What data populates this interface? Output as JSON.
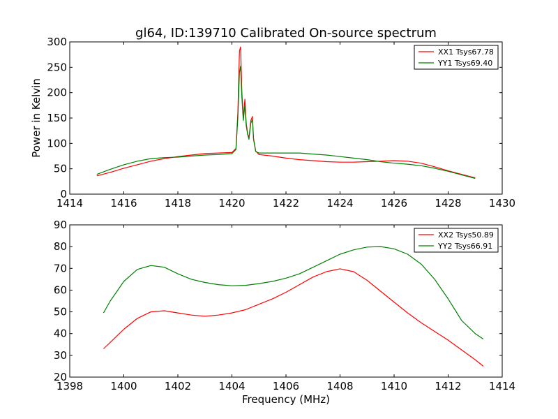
{
  "chart_data": [
    {
      "type": "line",
      "title": "gl64, ID:139710 Calibrated On-source spectrum",
      "xlabel": "",
      "ylabel": "Power in Kelvin",
      "xlim": [
        1414,
        1430
      ],
      "ylim": [
        0,
        300
      ],
      "xticks": [
        1414,
        1416,
        1418,
        1420,
        1422,
        1424,
        1426,
        1428,
        1430
      ],
      "yticks": [
        0,
        50,
        100,
        150,
        200,
        250,
        300
      ],
      "grid": false,
      "legend_position": "top-right",
      "series": [
        {
          "name": "XX1 Tsys67.78",
          "color": "#ff0000",
          "x": [
            1415.0,
            1415.5,
            1416.0,
            1416.5,
            1417.0,
            1417.5,
            1418.0,
            1418.5,
            1419.0,
            1419.5,
            1420.0,
            1420.15,
            1420.22,
            1420.28,
            1420.32,
            1420.37,
            1420.42,
            1420.48,
            1420.53,
            1420.58,
            1420.63,
            1420.7,
            1420.76,
            1420.8,
            1420.88,
            1421.0,
            1421.5,
            1422.0,
            1422.5,
            1423.0,
            1423.5,
            1424.0,
            1424.5,
            1425.0,
            1425.5,
            1426.0,
            1426.5,
            1427.0,
            1427.5,
            1428.0,
            1428.5,
            1429.0
          ],
          "y": [
            36,
            43,
            51,
            58,
            65,
            70,
            74,
            77,
            80,
            81,
            82,
            90,
            160,
            282,
            290,
            200,
            150,
            187,
            140,
            120,
            110,
            145,
            153,
            110,
            85,
            78,
            75,
            71,
            68,
            66,
            64,
            63,
            63,
            64,
            65,
            66,
            65,
            61,
            54,
            46,
            39,
            32
          ]
        },
        {
          "name": "YY1 Tsys69.40",
          "color": "#008000",
          "x": [
            1415.0,
            1415.5,
            1416.0,
            1416.5,
            1417.0,
            1417.5,
            1418.0,
            1418.5,
            1419.0,
            1419.5,
            1420.0,
            1420.15,
            1420.22,
            1420.28,
            1420.32,
            1420.37,
            1420.42,
            1420.48,
            1420.53,
            1420.58,
            1420.63,
            1420.7,
            1420.76,
            1420.8,
            1420.88,
            1421.0,
            1421.5,
            1422.0,
            1422.5,
            1423.0,
            1423.5,
            1424.0,
            1424.5,
            1425.0,
            1425.5,
            1426.0,
            1426.5,
            1427.0,
            1427.5,
            1428.0,
            1428.5,
            1429.0
          ],
          "y": [
            39,
            49,
            58,
            65,
            70,
            72,
            73,
            75,
            77,
            78,
            80,
            88,
            150,
            240,
            252,
            190,
            145,
            175,
            135,
            118,
            108,
            140,
            147,
            108,
            84,
            81,
            81,
            81,
            81,
            79,
            77,
            74,
            71,
            68,
            64,
            61,
            59,
            56,
            51,
            45,
            38,
            31
          ]
        }
      ]
    },
    {
      "type": "line",
      "title": "",
      "xlabel": "Frequency (MHz)",
      "ylabel": "",
      "xlim": [
        1398,
        1414
      ],
      "ylim": [
        20,
        90
      ],
      "xticks": [
        1398,
        1400,
        1402,
        1404,
        1406,
        1408,
        1410,
        1412,
        1414
      ],
      "yticks": [
        20,
        30,
        40,
        50,
        60,
        70,
        80,
        90
      ],
      "grid": false,
      "legend_position": "top-right",
      "series": [
        {
          "name": "XX2 Tsys50.89",
          "color": "#ff0000",
          "x": [
            1399.25,
            1399.5,
            1400.0,
            1400.5,
            1401.0,
            1401.5,
            1402.0,
            1402.5,
            1403.0,
            1403.5,
            1404.0,
            1404.5,
            1405.0,
            1405.5,
            1406.0,
            1406.5,
            1407.0,
            1407.5,
            1408.0,
            1408.5,
            1409.0,
            1409.5,
            1410.0,
            1410.5,
            1411.0,
            1411.5,
            1412.0,
            1412.5,
            1413.0,
            1413.3
          ],
          "y": [
            33,
            36,
            42,
            47,
            50,
            50.5,
            49.5,
            48.5,
            48,
            48.5,
            49.5,
            51,
            53.5,
            56,
            59,
            62.5,
            66,
            68.5,
            69.8,
            68.5,
            64.5,
            59.5,
            54.5,
            49.5,
            45,
            41,
            37,
            32.5,
            28,
            25
          ]
        },
        {
          "name": "YY2 Tsys66.91",
          "color": "#008000",
          "x": [
            1399.25,
            1399.5,
            1400.0,
            1400.5,
            1401.0,
            1401.5,
            1402.0,
            1402.5,
            1403.0,
            1403.5,
            1404.0,
            1404.5,
            1405.0,
            1405.5,
            1406.0,
            1406.5,
            1407.0,
            1407.5,
            1408.0,
            1408.5,
            1409.0,
            1409.5,
            1410.0,
            1410.5,
            1411.0,
            1411.5,
            1412.0,
            1412.5,
            1413.0,
            1413.3
          ],
          "y": [
            49.5,
            55,
            64,
            69.5,
            71.3,
            70.5,
            67.5,
            65,
            63.5,
            62.5,
            62,
            62.2,
            63,
            64,
            65.5,
            67.5,
            70.5,
            73.5,
            76.5,
            78.5,
            79.8,
            80,
            79,
            76.5,
            72,
            65,
            56,
            46,
            40,
            37.5
          ]
        }
      ]
    }
  ]
}
